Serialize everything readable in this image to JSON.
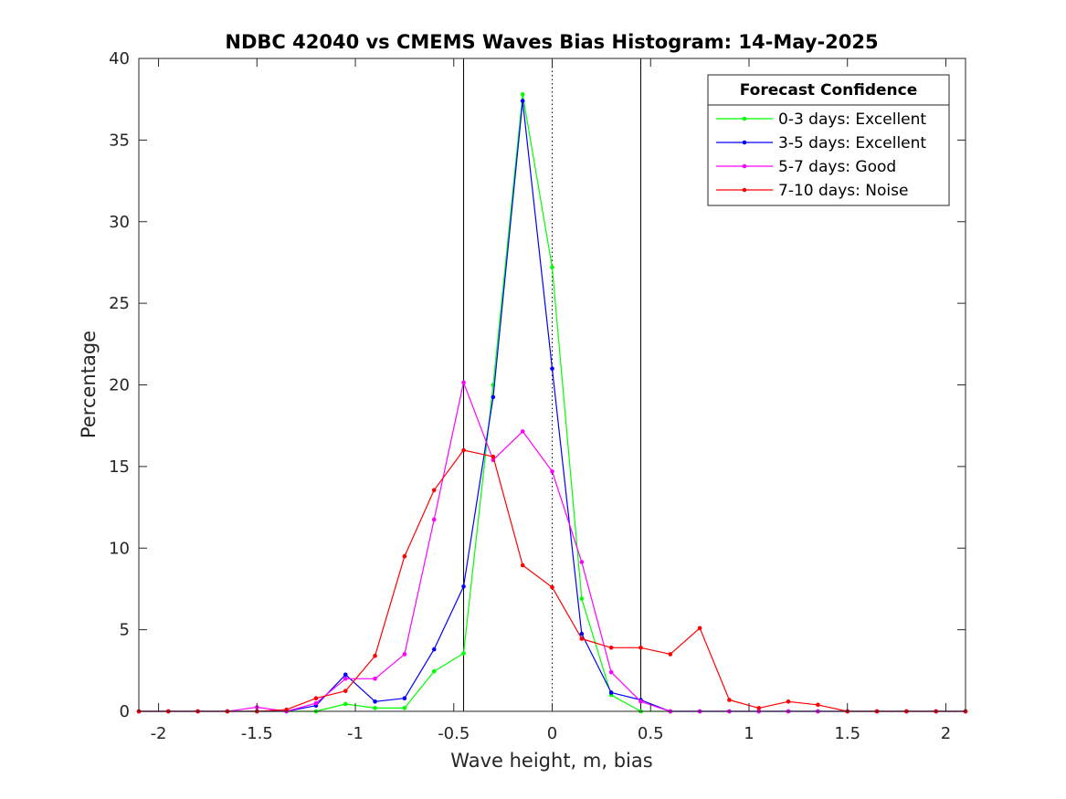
{
  "chart_data": {
    "type": "line",
    "title": "NDBC 42040 vs CMEMS Waves Bias Histogram: 14-May-2025",
    "xlabel": "Wave height, m, bias",
    "ylabel": "Percentage",
    "xlim": [
      -2.1,
      2.1
    ],
    "ylim": [
      0,
      40
    ],
    "xticks": [
      -2,
      -1.5,
      -1,
      -0.5,
      0,
      0.5,
      1,
      1.5,
      2
    ],
    "xtick_labels": [
      "-2",
      "-1.5",
      "-1",
      "-0.5",
      "0",
      "0.5",
      "1",
      "1.5",
      "2"
    ],
    "yticks": [
      0,
      5,
      10,
      15,
      20,
      25,
      30,
      35,
      40
    ],
    "ytick_labels": [
      "0",
      "5",
      "10",
      "15",
      "20",
      "25",
      "30",
      "35",
      "40"
    ],
    "grid": false,
    "legend_title": "Forecast Confidence",
    "legend_position": "top-right",
    "reference_lines": [
      {
        "x": -0.45,
        "style": "solid",
        "color": "#000000"
      },
      {
        "x": 0,
        "style": "dotted",
        "color": "#000000"
      },
      {
        "x": 0.45,
        "style": "solid",
        "color": "#000000"
      }
    ],
    "x": [
      -2.1,
      -1.95,
      -1.8,
      -1.65,
      -1.5,
      -1.35,
      -1.2,
      -1.05,
      -0.9,
      -0.75,
      -0.6,
      -0.45,
      -0.3,
      -0.15,
      0,
      0.15,
      0.3,
      0.45,
      0.6,
      0.75,
      0.9,
      1.05,
      1.2,
      1.35,
      1.5,
      1.65,
      1.8,
      1.95,
      2.1
    ],
    "series": [
      {
        "name": "0-3 days: Excellent",
        "color": "#00ff00",
        "values": [
          0,
          0,
          0,
          0,
          0,
          0,
          0,
          0.45,
          0.2,
          0.2,
          2.45,
          3.55,
          20.0,
          37.8,
          27.2,
          6.9,
          1.0,
          0,
          0,
          0,
          0,
          0,
          0,
          0,
          0,
          0,
          0,
          0,
          0
        ]
      },
      {
        "name": "3-5 days: Excellent",
        "color": "#0000ff",
        "values": [
          0,
          0,
          0,
          0,
          0,
          0,
          0.35,
          2.25,
          0.6,
          0.8,
          3.8,
          7.65,
          19.25,
          37.4,
          21.0,
          4.75,
          1.15,
          0.7,
          0,
          0,
          0,
          0,
          0,
          0,
          0,
          0,
          0,
          0,
          0
        ]
      },
      {
        "name": "5-7 days: Good",
        "color": "#ff00ff",
        "values": [
          0,
          0,
          0,
          0,
          0.25,
          0,
          0.5,
          2.0,
          2.0,
          3.5,
          11.75,
          20.15,
          15.4,
          17.15,
          14.7,
          9.15,
          2.4,
          0.6,
          0,
          0,
          0,
          0,
          0,
          0,
          0,
          0,
          0,
          0,
          0
        ]
      },
      {
        "name": "7-10 days: Noise",
        "color": "#ff0000",
        "values": [
          0,
          0,
          0,
          0,
          0,
          0.1,
          0.8,
          1.25,
          3.4,
          9.5,
          13.55,
          16.0,
          15.6,
          8.95,
          7.6,
          4.45,
          3.9,
          3.9,
          3.5,
          5.1,
          0.7,
          0.2,
          0.6,
          0.4,
          0,
          0,
          0,
          0,
          0
        ]
      }
    ]
  }
}
